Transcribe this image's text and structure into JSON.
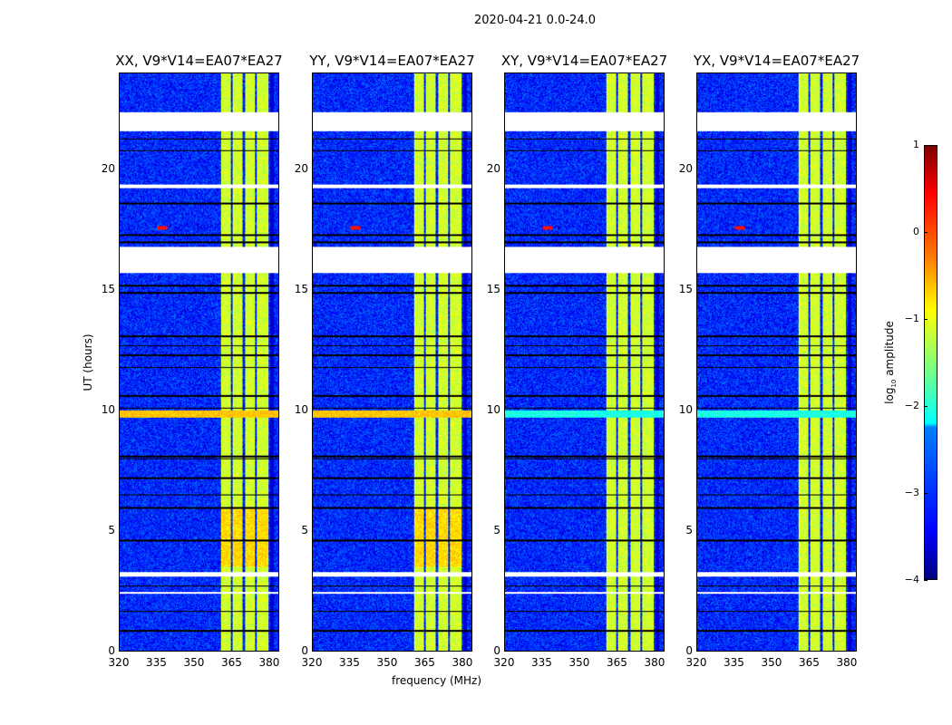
{
  "chart_data": {
    "type": "heatmap",
    "title": "2020-04-21 0.0-24.0",
    "xlabel": "frequency (MHz)",
    "ylabel": "UT (hours)",
    "xlim": [
      320,
      384
    ],
    "ylim": [
      0,
      24
    ],
    "xticks": [
      320,
      335,
      350,
      365,
      380
    ],
    "yticks": [
      0,
      5,
      10,
      15,
      20
    ],
    "panels": [
      {
        "title": "XX, V9*V14=EA07*EA27",
        "band_9_7_10_level": -0.6
      },
      {
        "title": "YY, V9*V14=EA07*EA27",
        "band_9_7_10_level": -0.6
      },
      {
        "title": "XY, V9*V14=EA07*EA27",
        "band_9_7_10_level": -2.0
      },
      {
        "title": "YX, V9*V14=EA07*EA27",
        "band_9_7_10_level": -2.0
      }
    ],
    "background_level": -3.2,
    "bright_channels_mhz": [
      [
        360.5,
        364.5
      ],
      [
        365.3,
        369.5
      ],
      [
        370.3,
        374.5
      ],
      [
        375.3,
        380
      ]
    ],
    "bright_channel_level": -1.1,
    "flagged_hours": [
      [
        21.6,
        22.4
      ],
      [
        15.7,
        16.8
      ],
      [
        19.25,
        19.4
      ],
      [
        3.1,
        3.3
      ],
      [
        2.4,
        2.45
      ]
    ],
    "colorbar": {
      "label": "log10 amplitude",
      "label_main": "log",
      "label_sub": "10",
      "label_rest": " amplitude",
      "ticks": [
        -4,
        -3,
        -2,
        -1,
        0,
        1
      ],
      "tick_labels": [
        "−4",
        "−3",
        "−2",
        "−1",
        "0",
        "1"
      ],
      "range": [
        -4,
        1
      ],
      "colormap": "jet"
    }
  }
}
